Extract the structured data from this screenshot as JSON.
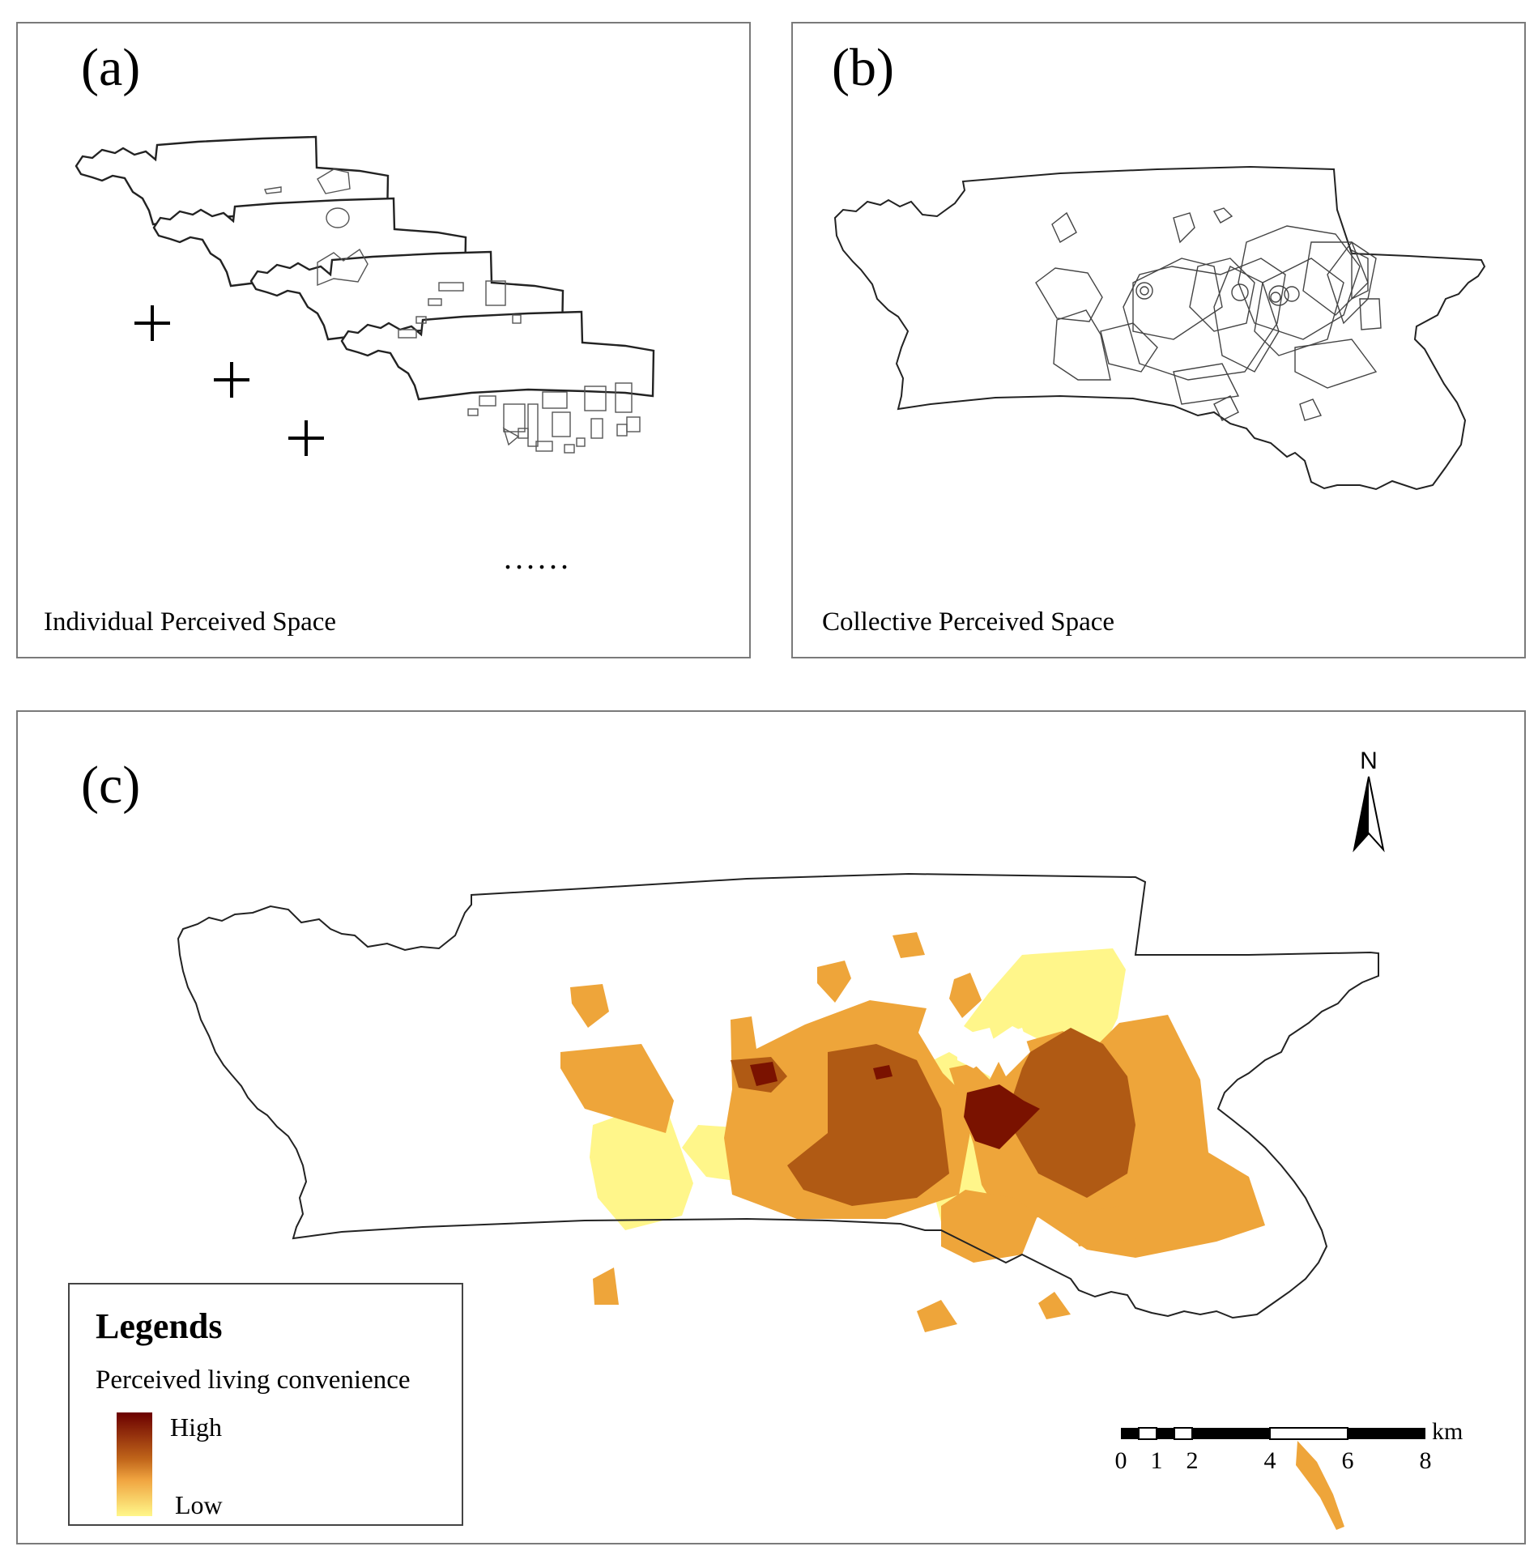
{
  "panels": {
    "a": {
      "label": "(a)",
      "caption": "Individual Perceived Space",
      "continuation": "......"
    },
    "b": {
      "label": "(b)",
      "caption": "Collective Perceived Space"
    },
    "c": {
      "label": "(c)"
    }
  },
  "legend": {
    "title": "Legends",
    "subtitle": "Perceived living convenience",
    "high_label": "High",
    "low_label": "Low",
    "ramp_colors": [
      "#6b0000",
      "#c0651a",
      "#f0a440",
      "#fff78a"
    ]
  },
  "north_arrow": {
    "label": "N"
  },
  "scale_bar": {
    "unit": "km",
    "ticks": [
      "0",
      "1",
      "2",
      "4",
      "6",
      "8"
    ]
  },
  "colors": {
    "very_high": "#7a1200",
    "high": "#b05a14",
    "medium": "#eea53a",
    "low": "#fff68a",
    "outline": "#222222"
  }
}
